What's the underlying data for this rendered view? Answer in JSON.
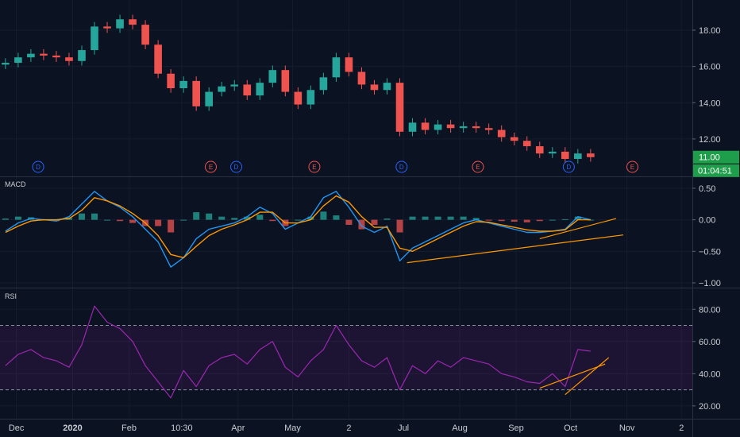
{
  "chart_data": [
    {
      "type": "candlestick",
      "pane": "price",
      "ylim": [
        10.2,
        19.4
      ],
      "y_ticks": [
        "18.00",
        "16.00",
        "14.00",
        "12.00"
      ],
      "y_tick_values": [
        18,
        16,
        14,
        12
      ],
      "last_price_label": "11.00",
      "last_price_value": 11.0,
      "countdown_label": "01:04:51",
      "up_color": "#26a69a",
      "down_color": "#ef5350",
      "events": [
        {
          "label": "D",
          "kind": "dividend",
          "color": "#2962ff",
          "date": "2019-12-13"
        },
        {
          "label": "E",
          "kind": "earnings",
          "color": "#ef5350",
          "date": "2020-03-17"
        },
        {
          "label": "D",
          "kind": "dividend",
          "color": "#2962ff",
          "date": "2020-03-31"
        },
        {
          "label": "E",
          "kind": "earnings",
          "color": "#ef5350",
          "date": "2020-05-13"
        },
        {
          "label": "D",
          "kind": "dividend",
          "color": "#2962ff",
          "date": "2020-06-30"
        },
        {
          "label": "E",
          "kind": "earnings",
          "color": "#ef5350",
          "date": "2020-08-11"
        },
        {
          "label": "D",
          "kind": "dividend",
          "color": "#2962ff",
          "date": "2020-09-30"
        },
        {
          "label": "E",
          "kind": "earnings",
          "color": "#ef5350",
          "date": "2020-11-04"
        }
      ],
      "dates": [
        "2019-11-25",
        "2019-12-02",
        "2019-12-09",
        "2019-12-16",
        "2019-12-23",
        "2019-12-30",
        "2020-01-06",
        "2020-01-13",
        "2020-01-20",
        "2020-01-27",
        "2020-02-03",
        "2020-02-10",
        "2020-02-17",
        "2020-02-24",
        "2020-03-02",
        "2020-03-09",
        "2020-03-16",
        "2020-03-23",
        "2020-03-30",
        "2020-04-06",
        "2020-04-13",
        "2020-04-20",
        "2020-04-27",
        "2020-05-04",
        "2020-05-11",
        "2020-05-18",
        "2020-05-25",
        "2020-06-01",
        "2020-06-08",
        "2020-06-15",
        "2020-06-22",
        "2020-06-29",
        "2020-07-06",
        "2020-07-13",
        "2020-07-20",
        "2020-07-27",
        "2020-08-03",
        "2020-08-10",
        "2020-08-17",
        "2020-08-24",
        "2020-08-31",
        "2020-09-07",
        "2020-09-14",
        "2020-09-21",
        "2020-09-28",
        "2020-10-05",
        "2020-10-12"
      ],
      "close": [
        16.2,
        16.5,
        16.7,
        16.6,
        16.5,
        16.3,
        16.9,
        18.2,
        18.1,
        18.6,
        18.3,
        17.2,
        15.6,
        14.8,
        15.2,
        13.8,
        14.6,
        14.9,
        15.0,
        14.4,
        15.1,
        15.8,
        14.6,
        13.9,
        14.7,
        15.4,
        16.5,
        15.7,
        15.0,
        14.7,
        15.1,
        12.4,
        12.9,
        12.5,
        12.8,
        12.6,
        12.7,
        12.6,
        12.5,
        12.1,
        11.9,
        11.6,
        11.2,
        11.3,
        10.9,
        11.2,
        11.0
      ]
    },
    {
      "type": "line",
      "pane": "MACD",
      "title": "MACD",
      "ylim": [
        -1.0,
        0.6
      ],
      "y_ticks": [
        "0.50",
        "0.00",
        "−0.50",
        "−1.00"
      ],
      "y_tick_values": [
        0.5,
        0.0,
        -0.5,
        -1.0
      ],
      "series": [
        {
          "color": "#2196f3",
          "values": [
            -0.18,
            -0.05,
            0.02,
            0.0,
            -0.02,
            0.05,
            0.25,
            0.45,
            0.3,
            0.2,
            0.05,
            -0.15,
            -0.35,
            -0.75,
            -0.6,
            -0.3,
            -0.15,
            -0.1,
            -0.05,
            0.05,
            0.2,
            0.1,
            -0.15,
            -0.05,
            0.05,
            0.35,
            0.45,
            0.2,
            -0.1,
            -0.2,
            -0.1,
            -0.65,
            -0.45,
            -0.35,
            -0.25,
            -0.15,
            -0.05,
            0.0,
            -0.05,
            -0.1,
            -0.15,
            -0.2,
            -0.2,
            -0.18,
            -0.15,
            0.05,
            0.0
          ]
        },
        {
          "color": "#ff9800",
          "values": [
            -0.2,
            -0.1,
            -0.02,
            0.0,
            0.0,
            0.02,
            0.15,
            0.35,
            0.3,
            0.22,
            0.1,
            -0.05,
            -0.25,
            -0.55,
            -0.6,
            -0.42,
            -0.25,
            -0.15,
            -0.08,
            0.0,
            0.12,
            0.12,
            -0.05,
            -0.05,
            0.0,
            0.22,
            0.38,
            0.28,
            0.05,
            -0.12,
            -0.12,
            -0.45,
            -0.5,
            -0.4,
            -0.3,
            -0.2,
            -0.1,
            -0.03,
            -0.04,
            -0.08,
            -0.12,
            -0.16,
            -0.18,
            -0.18,
            -0.16,
            0.0,
            0.0
          ]
        }
      ],
      "trendlines": [
        {
          "color": "#ff9800",
          "from": [
            "2020-07-03",
            -0.68
          ],
          "to": [
            "2020-10-30",
            -0.24
          ]
        },
        {
          "color": "#ff9800",
          "from": [
            "2020-09-14",
            -0.3
          ],
          "to": [
            "2020-10-26",
            0.02
          ]
        }
      ]
    },
    {
      "type": "line",
      "pane": "RSI",
      "title": "RSI",
      "ylim": [
        15,
        90
      ],
      "y_ticks": [
        "80.00",
        "60.00",
        "40.00",
        "20.00"
      ],
      "y_tick_values": [
        80,
        60,
        40,
        20
      ],
      "band": [
        30,
        70
      ],
      "band_color": "#9c27b0",
      "series": [
        {
          "color": "#9c27b0",
          "values": [
            45,
            52,
            55,
            50,
            48,
            44,
            58,
            82,
            72,
            68,
            60,
            45,
            35,
            25,
            42,
            32,
            45,
            50,
            52,
            46,
            55,
            60,
            44,
            38,
            48,
            55,
            70,
            58,
            48,
            44,
            50,
            30,
            45,
            40,
            48,
            44,
            50,
            48,
            46,
            40,
            38,
            35,
            34,
            40,
            32,
            55,
            54
          ]
        }
      ],
      "trendlines": [
        {
          "color": "#ff9800",
          "from": [
            "2020-09-14",
            31
          ],
          "to": [
            "2020-10-20",
            46
          ]
        },
        {
          "color": "#ff9800",
          "from": [
            "2020-09-28",
            27
          ],
          "to": [
            "2020-10-22",
            50
          ]
        }
      ]
    }
  ],
  "x_axis": {
    "labels": [
      {
        "text": "Dec",
        "date": "2019-12-01"
      },
      {
        "text": "2020",
        "date": "2020-01-01"
      },
      {
        "text": "Feb",
        "date": "2020-02-01"
      },
      {
        "text": "10:30",
        "date": "2020-03-01"
      },
      {
        "text": "Apr",
        "date": "2020-04-01"
      },
      {
        "text": "May",
        "date": "2020-05-01"
      },
      {
        "text": "2",
        "date": "2020-06-01"
      },
      {
        "text": "Jul",
        "date": "2020-07-01"
      },
      {
        "text": "Aug",
        "date": "2020-08-01"
      },
      {
        "text": "Sep",
        "date": "2020-09-01"
      },
      {
        "text": "Oct",
        "date": "2020-10-01"
      },
      {
        "text": "Nov",
        "date": "2020-11-01"
      },
      {
        "text": "2",
        "date": "2020-12-01"
      }
    ],
    "range": [
      "2019-11-22",
      "2020-12-07"
    ]
  }
}
